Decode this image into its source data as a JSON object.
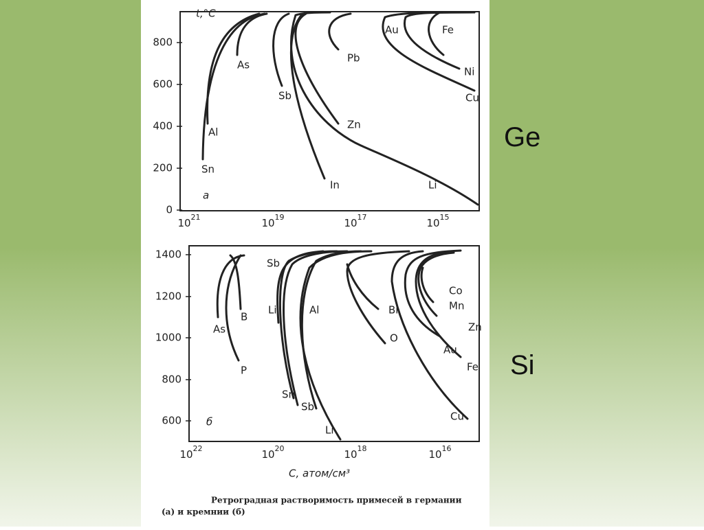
{
  "slide": {
    "labels": [
      "Ge",
      "Si"
    ],
    "panel_a": {
      "y_axis_label": "t,°C",
      "panel_label": "а",
      "y_ticks": [
        800,
        600,
        400,
        200,
        0
      ],
      "x_ticks": [
        {
          "base": "10",
          "exp": "21"
        },
        {
          "base": "10",
          "exp": "19"
        },
        {
          "base": "10",
          "exp": "17"
        },
        {
          "base": "10",
          "exp": "15"
        }
      ],
      "curve_labels": [
        "Sn",
        "Al",
        "As",
        "Sb",
        "In",
        "Zn",
        "Pb",
        "Au",
        "Fe",
        "Ni",
        "Cu",
        "Li"
      ]
    },
    "panel_b": {
      "x_axis_label": "C, атом/см³",
      "panel_label": "б",
      "y_ticks": [
        1400,
        1200,
        1000,
        800,
        600
      ],
      "x_ticks": [
        {
          "base": "10",
          "exp": "22"
        },
        {
          "base": "10",
          "exp": "20"
        },
        {
          "base": "10",
          "exp": "18"
        },
        {
          "base": "10",
          "exp": "16"
        }
      ],
      "curve_labels": [
        "As",
        "B",
        "P",
        "Sb",
        "Li",
        "Al",
        "Sn",
        "Sb",
        "Li",
        "Bi",
        "O",
        "Co",
        "Mn",
        "Zn",
        "Au",
        "Fe",
        "Cu"
      ]
    },
    "caption": [
      "Ретроградная растворимость примесей в германии",
      "(а) и кремнии (б)"
    ]
  }
}
